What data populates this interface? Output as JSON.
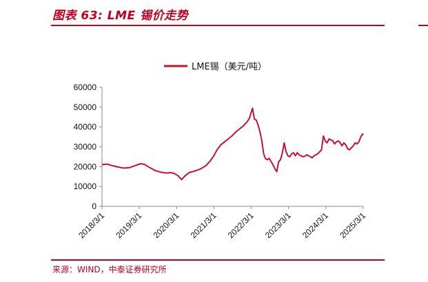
{
  "title": "图表 63:  LME 锡价走势",
  "source": "来源：WIND，中泰证券研究所",
  "colors": {
    "accent": "#c00020",
    "series": "#c8102e"
  },
  "chart_data": {
    "type": "line",
    "legend": "LME锡（美元/吨）",
    "legend_position": "top-center",
    "ylim": [
      0,
      60000
    ],
    "yticks": [
      0,
      10000,
      20000,
      30000,
      40000,
      50000,
      60000
    ],
    "ytick_labels": [
      "0",
      "10000",
      "20000",
      "30000",
      "40000",
      "50000",
      "60000"
    ],
    "xlim": [
      2018.167,
      2025.167
    ],
    "xticks": [
      2018.167,
      2019.167,
      2020.167,
      2021.167,
      2022.167,
      2023.167,
      2024.167,
      2025.167
    ],
    "xtick_labels": [
      "2018/3/1",
      "2019/3/1",
      "2020/3/1",
      "2021/3/1",
      "2022/3/1",
      "2023/3/1",
      "2024/3/1",
      "2025/3/1"
    ],
    "series": [
      {
        "name": "LME锡（美元/吨）",
        "x": [
          2018.167,
          2018.3,
          2018.45,
          2018.6,
          2018.75,
          2018.9,
          2019.05,
          2019.2,
          2019.3,
          2019.45,
          2019.6,
          2019.75,
          2019.9,
          2020.0,
          2020.1,
          2020.2,
          2020.3,
          2020.4,
          2020.5,
          2020.65,
          2020.8,
          2020.95,
          2021.05,
          2021.15,
          2021.25,
          2021.35,
          2021.45,
          2021.55,
          2021.65,
          2021.75,
          2021.85,
          2021.95,
          2022.05,
          2022.12,
          2022.167,
          2022.2,
          2022.25,
          2022.3,
          2022.35,
          2022.4,
          2022.45,
          2022.5,
          2022.55,
          2022.6,
          2022.65,
          2022.7,
          2022.75,
          2022.8,
          2022.85,
          2022.9,
          2022.95,
          2023.0,
          2023.05,
          2023.1,
          2023.15,
          2023.2,
          2023.25,
          2023.3,
          2023.35,
          2023.4,
          2023.45,
          2023.5,
          2023.55,
          2023.6,
          2023.65,
          2023.7,
          2023.75,
          2023.8,
          2023.85,
          2023.9,
          2023.95,
          2024.0,
          2024.05,
          2024.1,
          2024.15,
          2024.2,
          2024.25,
          2024.3,
          2024.35,
          2024.4,
          2024.45,
          2024.5,
          2024.55,
          2024.6,
          2024.65,
          2024.7,
          2024.75,
          2024.8,
          2024.85,
          2024.9,
          2024.95,
          2025.0,
          2025.05,
          2025.1,
          2025.15,
          2025.167
        ],
        "y": [
          21000,
          21300,
          20500,
          19800,
          19300,
          19500,
          20500,
          21500,
          21200,
          19500,
          18000,
          17200,
          16800,
          17000,
          16600,
          15500,
          13500,
          15500,
          17000,
          17800,
          18800,
          20500,
          22500,
          25000,
          28500,
          31000,
          32500,
          34000,
          35500,
          37500,
          39000,
          40500,
          42500,
          44500,
          47500,
          49500,
          44000,
          43500,
          41000,
          37500,
          33000,
          26500,
          24000,
          23500,
          24200,
          22500,
          21000,
          19000,
          17500,
          22500,
          23500,
          27000,
          32000,
          27500,
          25500,
          25000,
          26500,
          27000,
          25500,
          27000,
          26000,
          25500,
          25000,
          25200,
          26000,
          25500,
          25000,
          24500,
          25500,
          26000,
          26500,
          27500,
          28500,
          35500,
          33000,
          32000,
          34000,
          33500,
          33000,
          31500,
          32500,
          33000,
          32000,
          30500,
          32000,
          31000,
          29000,
          28500,
          29500,
          30500,
          32000,
          31500,
          32500,
          35000,
          36500,
          36000
        ]
      }
    ]
  }
}
